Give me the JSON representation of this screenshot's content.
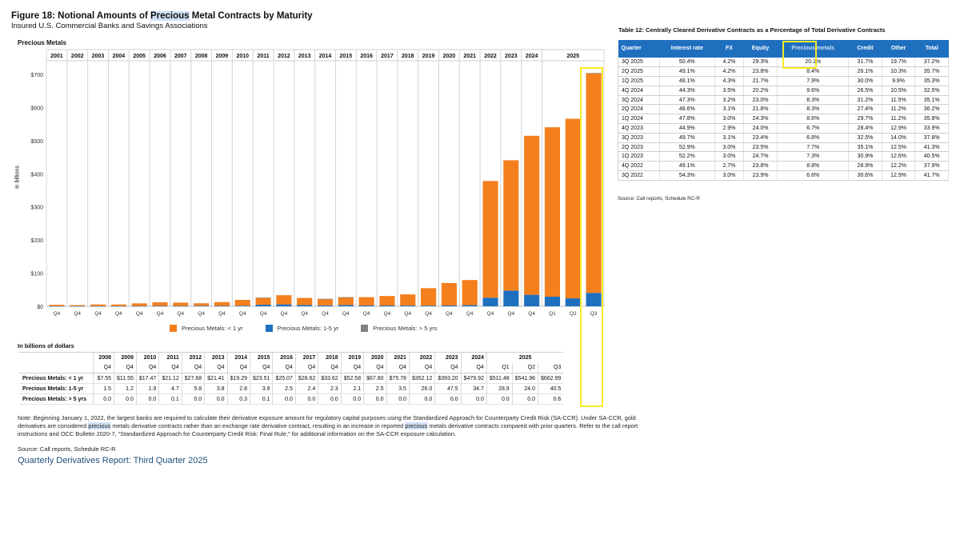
{
  "figure": {
    "title_before": "Figure 18: Notional Amounts of ",
    "title_highlight": "Precious",
    "title_after": " Metal Contracts by Maturity",
    "subtitle": "Insured U.S. Commercial Banks and Savings Associations",
    "section_label": "Precious Metals"
  },
  "chart_data": {
    "type": "bar",
    "stacked": true,
    "title": "Notional Amounts of Precious Metal Contracts by Maturity",
    "ylabel": "in billions",
    "ylim": [
      0,
      700
    ],
    "yticks": [
      0,
      100,
      200,
      300,
      400,
      500,
      600,
      700
    ],
    "ytick_labels": [
      "$0",
      "$100",
      "$200",
      "$300",
      "$400",
      "$500",
      "$600",
      "$700"
    ],
    "grid": false,
    "legend_placement": "bottom",
    "years": [
      "2001",
      "2002",
      "2003",
      "2004",
      "2005",
      "2006",
      "2007",
      "2008",
      "2009",
      "2010",
      "2011",
      "2012",
      "2013",
      "2014",
      "2015",
      "2016",
      "2017",
      "2018",
      "2019",
      "2020",
      "2021",
      "2022",
      "2023",
      "2024",
      "2025"
    ],
    "year_group_spans": [
      1,
      1,
      1,
      1,
      1,
      1,
      1,
      1,
      1,
      1,
      1,
      1,
      1,
      1,
      1,
      1,
      1,
      1,
      1,
      1,
      1,
      1,
      1,
      1,
      3
    ],
    "categories": [
      "Q4",
      "Q4",
      "Q4",
      "Q4",
      "Q4",
      "Q4",
      "Q4",
      "Q4",
      "Q4",
      "Q4",
      "Q4",
      "Q4",
      "Q4",
      "Q4",
      "Q4",
      "Q4",
      "Q4",
      "Q4",
      "Q4",
      "Q4",
      "Q4",
      "Q4",
      "Q4",
      "Q4",
      "Q1",
      "Q2",
      "Q3"
    ],
    "series": [
      {
        "name": "Precious Metals: < 1 yr",
        "color": "#f47f1d",
        "values": [
          4,
          3,
          5,
          5,
          8,
          11,
          10,
          7.55,
          11.55,
          17.47,
          21.12,
          27.68,
          21.41,
          19.29,
          23.51,
          25.07,
          28.62,
          33.62,
          52.58,
          67.8,
          75.78,
          352.12,
          393.2,
          479.92,
          511.48,
          541.96,
          662.99
        ]
      },
      {
        "name": "Precious Metals: 1-5 yr",
        "color": "#1f6fbf",
        "values": [
          0.5,
          0.5,
          0.5,
          0.5,
          0.8,
          1,
          1,
          1.5,
          1.2,
          1.9,
          4.7,
          5.8,
          3.8,
          2.8,
          3.9,
          2.5,
          2.4,
          2.3,
          2.1,
          2.5,
          3.5,
          26.0,
          47.5,
          34.7,
          28.9,
          24.0,
          40.5
        ]
      },
      {
        "name": "Precious Metals: > 5 yrs",
        "color": "#808080",
        "values": [
          0,
          0,
          0,
          0,
          0,
          0,
          0,
          0.0,
          0.0,
          0.0,
          0.1,
          0.0,
          0.0,
          0.3,
          0.1,
          0.0,
          0.0,
          0.0,
          0.0,
          0.0,
          0.0,
          0.0,
          0.0,
          0.0,
          0.0,
          0.0,
          0.6
        ]
      }
    ]
  },
  "data_table": {
    "caption": "In billions of dollars",
    "years": [
      "2008",
      "2009",
      "2010",
      "2011",
      "2012",
      "2013",
      "2014",
      "2015",
      "2016",
      "2017",
      "2018",
      "2019",
      "2020",
      "2021",
      "2022",
      "2023",
      "2024",
      "2025"
    ],
    "year_spans": [
      1,
      1,
      1,
      1,
      1,
      1,
      1,
      1,
      1,
      1,
      1,
      1,
      1,
      1,
      1,
      1,
      1,
      3
    ],
    "quarters": [
      "Q4",
      "Q4",
      "Q4",
      "Q4",
      "Q4",
      "Q4",
      "Q4",
      "Q4",
      "Q4",
      "Q4",
      "Q4",
      "Q4",
      "Q4",
      "Q4",
      "Q4",
      "Q4",
      "Q4",
      "Q1",
      "Q2",
      "Q3"
    ],
    "rows": [
      {
        "label": "Precious Metals: < 1 yr",
        "values": [
          "$7.55",
          "$11.55",
          "$17.47",
          "$21.12",
          "$27.68",
          "$21.41",
          "$19.29",
          "$23.51",
          "$25.07",
          "$28.62",
          "$33.62",
          "$52.58",
          "$67.80",
          "$75.78",
          "$352.12",
          "$393.20",
          "$479.92",
          "$511.48",
          "$541.96",
          "$662.99"
        ]
      },
      {
        "label": "Precious Metals: 1-5 yr",
        "values": [
          "1.5",
          "1.2",
          "1.9",
          "4.7",
          "5.8",
          "3.8",
          "2.8",
          "3.9",
          "2.5",
          "2.4",
          "2.3",
          "2.1",
          "2.5",
          "3.5",
          "26.0",
          "47.5",
          "34.7",
          "28.9",
          "24.0",
          "40.5"
        ]
      },
      {
        "label": "Precious Metals: > 5 yrs",
        "values": [
          "0.0",
          "0.0",
          "0.0",
          "0.1",
          "0.0",
          "0.0",
          "0.3",
          "0.1",
          "0.0",
          "0.0",
          "0.0",
          "0.0",
          "0.0",
          "0.0",
          "0.0",
          "0.0",
          "0.0",
          "0.0",
          "0.0",
          "0.6"
        ]
      }
    ]
  },
  "note": {
    "p1": "Note: Beginning January 1, 2022, the largest banks are required to calculate their derivative exposure amount for regulatory capital purposes using the Standardized Approach for Counterparty Credit Risk (SA-CCR). Under SA-CCR, gold derivatives are considered ",
    "h1": "precious",
    "p2": " metals derivative contracts rather than an exchange rate derivative contract, resulting in an increase in reported ",
    "h2": "precious",
    "p3": " metals derivative contracts compared with prior quarters. Refer to the call report instructions and OCC Bulletin 2020-7, “Standardized Approach for Counterparty Credit Risk: Final Rule,” for additional information on the SA-CCR exposure calculation."
  },
  "source": "Source: Call reports, Schedule RC-R",
  "report_title": "Quarterly Derivatives Report: Third Quarter 2025",
  "table12": {
    "title": "Table 12: Centrally Cleared Derivative Contracts as a Percentage of Total Derivative Contracts",
    "headers": [
      "Quarter",
      "Interest rate",
      "FX",
      "Equity",
      "Precious metals",
      "Credit",
      "Other",
      "Total"
    ],
    "rows": [
      [
        "3Q 2025",
        "50.4%",
        "4.2%",
        "29.3%",
        "20.1%",
        "31.7%",
        "19.7%",
        "37.2%"
      ],
      [
        "2Q 2025",
        "49.1%",
        "4.2%",
        "23.8%",
        "8.4%",
        "26.1%",
        "10.3%",
        "35.7%"
      ],
      [
        "1Q 2025",
        "48.1%",
        "4.3%",
        "21.7%",
        "7.9%",
        "30.0%",
        "9.9%",
        "35.3%"
      ],
      [
        "4Q 2024",
        "44.3%",
        "3.5%",
        "20.2%",
        "9.6%",
        "26.5%",
        "10.5%",
        "32.5%"
      ],
      [
        "3Q 2024",
        "47.3%",
        "3.2%",
        "23.0%",
        "8.3%",
        "31.2%",
        "11.5%",
        "35.1%"
      ],
      [
        "2Q 2024",
        "48.6%",
        "3.1%",
        "21.8%",
        "8.3%",
        "27.4%",
        "11.2%",
        "36.2%"
      ],
      [
        "1Q 2024",
        "47.8%",
        "3.0%",
        "24.3%",
        "8.6%",
        "29.7%",
        "11.2%",
        "35.8%"
      ],
      [
        "4Q 2023",
        "44.9%",
        "2.9%",
        "24.0%",
        "6.7%",
        "28.4%",
        "12.9%",
        "33.9%"
      ],
      [
        "3Q 2023",
        "49.7%",
        "3.1%",
        "23.4%",
        "6.8%",
        "32.5%",
        "14.0%",
        "37.8%"
      ],
      [
        "2Q 2023",
        "52.9%",
        "3.0%",
        "23.5%",
        "7.7%",
        "35.1%",
        "12.5%",
        "41.3%"
      ],
      [
        "1Q 2023",
        "52.2%",
        "3.0%",
        "24.7%",
        "7.3%",
        "30.9%",
        "12.6%",
        "40.5%"
      ],
      [
        "4Q 2022",
        "49.1%",
        "2.7%",
        "23.8%",
        "8.8%",
        "28.9%",
        "12.2%",
        "37.9%"
      ],
      [
        "3Q 2022",
        "54.3%",
        "3.0%",
        "23.9%",
        "6.6%",
        "30.6%",
        "12.9%",
        "41.7%"
      ]
    ],
    "source": "Source: Call reports, Schedule RC-R",
    "highlight_color": "#f6ea25"
  }
}
